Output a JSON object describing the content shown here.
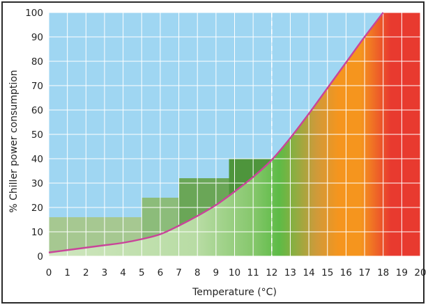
{
  "chart_data": {
    "type": "area",
    "title": "",
    "xlabel": "Temperature (°C)",
    "ylabel": "% Chiller power consumption",
    "xlim": [
      0,
      20
    ],
    "ylim": [
      0,
      100
    ],
    "x_ticks": [
      "0",
      "1",
      "2",
      "3",
      "4",
      "5",
      "6",
      "7",
      "8",
      "9",
      "10",
      "11",
      "12",
      "13",
      "14",
      "15",
      "16",
      "17",
      "18",
      "19",
      "20"
    ],
    "y_ticks": [
      "0",
      "10",
      "20",
      "30",
      "40",
      "50",
      "60",
      "70",
      "80",
      "90",
      "100"
    ],
    "grid": true,
    "legend": "none",
    "reference_line_x": 12,
    "steps": [
      {
        "x_start": 0,
        "x_end": 5,
        "value": 16,
        "color": "#a6c891"
      },
      {
        "x_start": 5,
        "x_end": 7,
        "value": 24,
        "color": "#8cbc7a"
      },
      {
        "x_start": 7,
        "x_end": 9.7,
        "value": 32,
        "color": "#6aa657"
      },
      {
        "x_start": 9.7,
        "x_end": 12,
        "value": 40,
        "color": "#4e953c"
      }
    ],
    "curve": {
      "x": [
        0,
        1,
        2,
        3,
        4,
        5,
        6,
        7,
        8,
        9,
        10,
        11,
        12,
        13,
        14,
        15,
        16,
        17,
        18
      ],
      "y": [
        1.5,
        2.5,
        3.5,
        4.5,
        5.5,
        7,
        9,
        12.5,
        16.5,
        21,
        26.5,
        32.5,
        39.5,
        48.5,
        58.5,
        69,
        79.5,
        90,
        100
      ]
    },
    "colors": {
      "sky": "#9fd6f2",
      "curve": "#c9449a",
      "grid": "#ffffff",
      "reference": "#ffffff",
      "gradient_light_green": "#cfe6bf",
      "gradient_green": "#5dbb46",
      "gradient_orange": "#f5951e",
      "gradient_red": "#e83a2f"
    }
  }
}
